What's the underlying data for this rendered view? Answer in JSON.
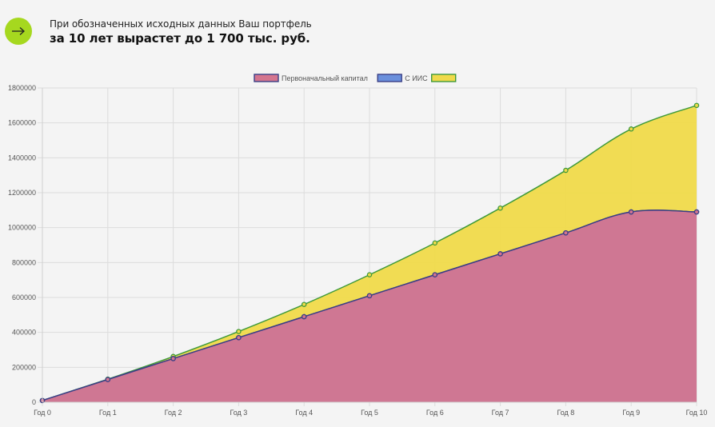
{
  "header": {
    "subtitle": "При обозначенных исходных данных Ваш портфель",
    "title": "за 10 лет вырастет до 1 700 тыс. руб.",
    "arrow_icon": "arrow-right-icon",
    "arrow_color": "#a6d81f"
  },
  "chart_data": {
    "type": "area",
    "categories": [
      "Год 0",
      "Год 1",
      "Год 2",
      "Год 3",
      "Год 4",
      "Год 5",
      "Год 6",
      "Год 7",
      "Год 8",
      "Год 9",
      "Год 10"
    ],
    "ylim": [
      0,
      1800000
    ],
    "yticks": [
      0,
      200000,
      400000,
      600000,
      800000,
      1000000,
      1200000,
      1400000,
      1600000,
      1800000
    ],
    "grid": true,
    "legend_position": "top-center",
    "stacked_display": "overlapping",
    "series": [
      {
        "name": "Первоначальный капитал",
        "values": [
          10000,
          130000,
          250000,
          370000,
          490000,
          610000,
          730000,
          850000,
          970000,
          1090000,
          1090000
        ],
        "fill": "#d4758f",
        "stroke": "#3a3f86"
      },
      {
        "name": "С ИИС",
        "values": [
          10000,
          130000,
          250000,
          370000,
          490000,
          610000,
          730000,
          850000,
          970000,
          1090000,
          1090000
        ],
        "fill": "#6a8fdc",
        "stroke": "#3a3f86"
      },
      {
        "name": "",
        "values": [
          10000,
          132000,
          262000,
          405000,
          560000,
          730000,
          912000,
          1112000,
          1328000,
          1565000,
          1700000
        ],
        "fill": "#f0da4a",
        "stroke": "#3f9a3a"
      }
    ]
  }
}
